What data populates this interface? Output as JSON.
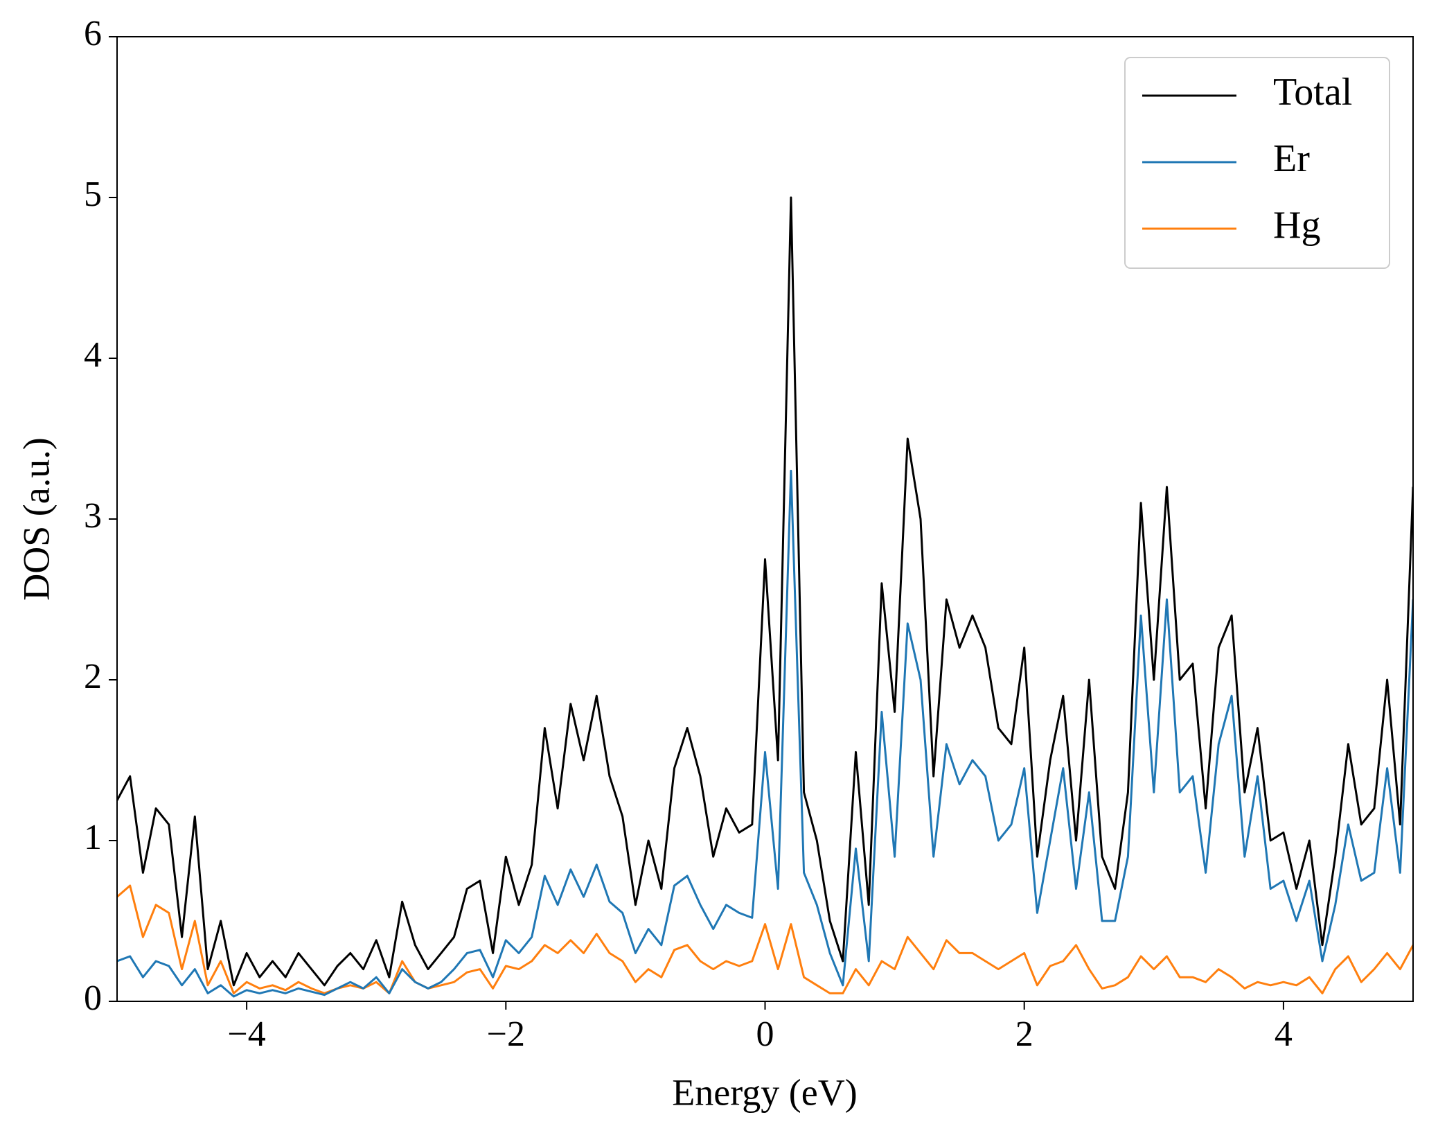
{
  "chart_data": {
    "type": "line",
    "xlabel": "Energy (eV)",
    "ylabel": "DOS (a.u.)",
    "x": [
      -5.0,
      -4.9,
      -4.8,
      -4.7,
      -4.6,
      -4.5,
      -4.4,
      -4.3,
      -4.2,
      -4.1,
      -4.0,
      -3.9,
      -3.8,
      -3.7,
      -3.6,
      -3.5,
      -3.4,
      -3.3,
      -3.2,
      -3.1,
      -3.0,
      -2.9,
      -2.8,
      -2.7,
      -2.6,
      -2.5,
      -2.4,
      -2.3,
      -2.2,
      -2.1,
      -2.0,
      -1.9,
      -1.8,
      -1.7,
      -1.6,
      -1.5,
      -1.4,
      -1.3,
      -1.2,
      -1.1,
      -1.0,
      -0.9,
      -0.8,
      -0.7,
      -0.6,
      -0.5,
      -0.4,
      -0.3,
      -0.2,
      -0.1,
      0.0,
      0.1,
      0.2,
      0.3,
      0.4,
      0.5,
      0.6,
      0.7,
      0.8,
      0.9,
      1.0,
      1.1,
      1.2,
      1.3,
      1.4,
      1.5,
      1.6,
      1.7,
      1.8,
      1.9,
      2.0,
      2.1,
      2.2,
      2.3,
      2.4,
      2.5,
      2.6,
      2.7,
      2.8,
      2.9,
      3.0,
      3.1,
      3.2,
      3.3,
      3.4,
      3.5,
      3.6,
      3.7,
      3.8,
      3.9,
      4.0,
      4.1,
      4.2,
      4.3,
      4.4,
      4.5,
      4.6,
      4.7,
      4.8,
      4.9,
      5.0
    ],
    "series": [
      {
        "name": "Total",
        "color": "#000000",
        "values": [
          1.25,
          1.4,
          0.8,
          1.2,
          1.1,
          0.4,
          1.15,
          0.2,
          0.5,
          0.1,
          0.3,
          0.15,
          0.25,
          0.15,
          0.3,
          0.2,
          0.1,
          0.22,
          0.3,
          0.2,
          0.38,
          0.15,
          0.62,
          0.35,
          0.2,
          0.3,
          0.4,
          0.7,
          0.75,
          0.3,
          0.9,
          0.6,
          0.85,
          1.7,
          1.2,
          1.85,
          1.5,
          1.9,
          1.4,
          1.15,
          0.6,
          1.0,
          0.7,
          1.45,
          1.7,
          1.4,
          0.9,
          1.2,
          1.05,
          1.1,
          2.75,
          1.5,
          5.0,
          1.3,
          1.0,
          0.5,
          0.25,
          1.55,
          0.6,
          2.6,
          1.8,
          3.5,
          3.0,
          1.4,
          2.5,
          2.2,
          2.4,
          2.2,
          1.7,
          1.6,
          2.2,
          0.9,
          1.5,
          1.9,
          1.0,
          2.0,
          0.9,
          0.7,
          1.3,
          3.1,
          2.0,
          3.2,
          2.0,
          2.1,
          1.2,
          2.2,
          2.4,
          1.3,
          1.7,
          1.0,
          1.05,
          0.7,
          1.0,
          0.35,
          0.9,
          1.6,
          1.1,
          1.2,
          2.0,
          1.1,
          3.2
        ]
      },
      {
        "name": "Er",
        "color": "#1f77b4",
        "values": [
          0.25,
          0.28,
          0.15,
          0.25,
          0.22,
          0.1,
          0.2,
          0.05,
          0.1,
          0.03,
          0.07,
          0.05,
          0.07,
          0.05,
          0.08,
          0.06,
          0.04,
          0.08,
          0.12,
          0.08,
          0.15,
          0.05,
          0.2,
          0.12,
          0.08,
          0.12,
          0.2,
          0.3,
          0.32,
          0.15,
          0.38,
          0.3,
          0.4,
          0.78,
          0.6,
          0.82,
          0.65,
          0.85,
          0.62,
          0.55,
          0.3,
          0.45,
          0.35,
          0.72,
          0.78,
          0.6,
          0.45,
          0.6,
          0.55,
          0.52,
          1.55,
          0.7,
          3.3,
          0.8,
          0.6,
          0.3,
          0.1,
          0.95,
          0.25,
          1.8,
          0.9,
          2.35,
          2.0,
          0.9,
          1.6,
          1.35,
          1.5,
          1.4,
          1.0,
          1.1,
          1.45,
          0.55,
          1.0,
          1.45,
          0.7,
          1.3,
          0.5,
          0.5,
          0.9,
          2.4,
          1.3,
          2.5,
          1.3,
          1.4,
          0.8,
          1.6,
          1.9,
          0.9,
          1.4,
          0.7,
          0.75,
          0.5,
          0.75,
          0.25,
          0.6,
          1.1,
          0.75,
          0.8,
          1.45,
          0.8,
          2.5
        ]
      },
      {
        "name": "Hg",
        "color": "#ff7f0e",
        "values": [
          0.65,
          0.72,
          0.4,
          0.6,
          0.55,
          0.2,
          0.5,
          0.1,
          0.25,
          0.05,
          0.12,
          0.08,
          0.1,
          0.07,
          0.12,
          0.08,
          0.05,
          0.08,
          0.1,
          0.08,
          0.12,
          0.05,
          0.25,
          0.12,
          0.08,
          0.1,
          0.12,
          0.18,
          0.2,
          0.08,
          0.22,
          0.2,
          0.25,
          0.35,
          0.3,
          0.38,
          0.3,
          0.42,
          0.3,
          0.25,
          0.12,
          0.2,
          0.15,
          0.32,
          0.35,
          0.25,
          0.2,
          0.25,
          0.22,
          0.25,
          0.48,
          0.2,
          0.48,
          0.15,
          0.1,
          0.05,
          0.05,
          0.2,
          0.1,
          0.25,
          0.2,
          0.4,
          0.3,
          0.2,
          0.38,
          0.3,
          0.3,
          0.25,
          0.2,
          0.25,
          0.3,
          0.1,
          0.22,
          0.25,
          0.35,
          0.2,
          0.08,
          0.1,
          0.15,
          0.28,
          0.2,
          0.28,
          0.15,
          0.15,
          0.12,
          0.2,
          0.15,
          0.08,
          0.12,
          0.1,
          0.12,
          0.1,
          0.15,
          0.05,
          0.2,
          0.28,
          0.12,
          0.2,
          0.3,
          0.2,
          0.35
        ]
      }
    ],
    "xlim": [
      -5,
      5
    ],
    "ylim": [
      0,
      6
    ],
    "xticks": [
      {
        "value": -4,
        "label": "−4"
      },
      {
        "value": -2,
        "label": "−2"
      },
      0,
      2,
      4
    ],
    "yticks": [
      0,
      1,
      2,
      3,
      4,
      5,
      6
    ],
    "legend": "upper right"
  }
}
